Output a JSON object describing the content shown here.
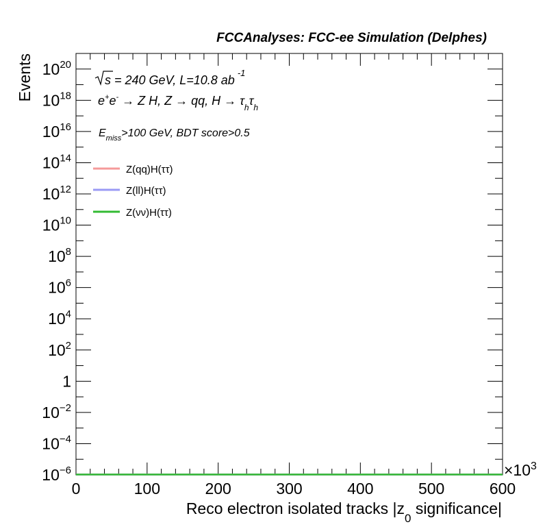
{
  "header": {
    "title": "FCCAnalyses: FCC-ee Simulation (Delphes)"
  },
  "annotations": {
    "sqrt_s": "s",
    "energy_lumi": " = 240 GeV, L=10.8 ab",
    "lumi_exp": "-1",
    "process_a": "e",
    "process_plus": "+",
    "process_b": "e",
    "process_minus": "-",
    "process_c": " → Z H, Z  → qq, H  → τ",
    "process_sub1": "h",
    "process_d": "τ",
    "process_sub2": "h",
    "cut_e": "E",
    "cut_sub": "miss",
    "cut_rest": ">100 GeV, BDT score>0.5"
  },
  "chart_data": {
    "type": "line",
    "title": "FCCAnalyses: FCC-ee Simulation (Delphes)",
    "xlabel_main": "Reco electron isolated tracks |z",
    "xlabel_sub": "0",
    "xlabel_end": " significance|",
    "ylabel": "Events",
    "x_multiplier": "×10",
    "x_multiplier_exp": "3",
    "xlim": [
      0,
      600
    ],
    "ylim_log10": [
      -6,
      21
    ],
    "y_scale": "log",
    "x_ticks": [
      "0",
      "100",
      "200",
      "300",
      "400",
      "500",
      "600"
    ],
    "y_ticks": [
      {
        "base": "10",
        "exp": "20",
        "log": 20
      },
      {
        "base": "10",
        "exp": "18",
        "log": 18
      },
      {
        "base": "10",
        "exp": "16",
        "log": 16
      },
      {
        "base": "10",
        "exp": "14",
        "log": 14
      },
      {
        "base": "10",
        "exp": "12",
        "log": 12
      },
      {
        "base": "10",
        "exp": "10",
        "log": 10
      },
      {
        "base": "10",
        "exp": "8",
        "log": 8
      },
      {
        "base": "10",
        "exp": "6",
        "log": 6
      },
      {
        "base": "10",
        "exp": "4",
        "log": 4
      },
      {
        "base": "10",
        "exp": "2",
        "log": 2
      },
      {
        "base": "1",
        "exp": "",
        "log": 0
      },
      {
        "base": "10",
        "exp": "−2",
        "log": -2
      },
      {
        "base": "10",
        "exp": "−4",
        "log": -4
      },
      {
        "base": "10",
        "exp": "−6",
        "log": -6
      }
    ],
    "legend_position": "top-left",
    "grid": false,
    "series": [
      {
        "name": "Z(qq)H(ττ)",
        "color": "#f59a9a",
        "x": [
          0,
          600
        ],
        "log10_y": [
          -6,
          -6
        ]
      },
      {
        "name": "Z(ll)H(ττ)",
        "color": "#9a9af5",
        "x": [
          0,
          600
        ],
        "log10_y": [
          -6,
          -6
        ]
      },
      {
        "name": "Z(νν)H(ττ)",
        "color": "#33bb33",
        "x": [
          0,
          600
        ],
        "log10_y": [
          -6,
          -6
        ]
      }
    ]
  }
}
